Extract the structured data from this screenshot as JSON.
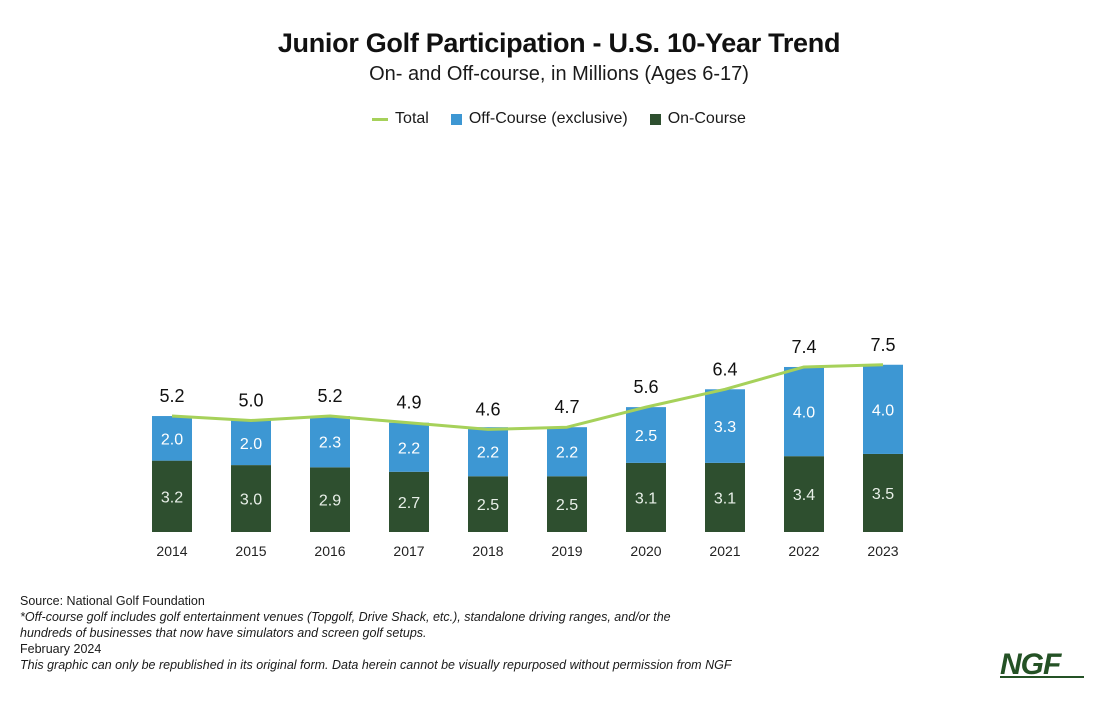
{
  "chart_data": {
    "type": "bar",
    "stacked": true,
    "title": "Junior Golf Participation - U.S. 10-Year Trend",
    "subtitle": "On- and Off-course, in Millions (Ages 6-17)",
    "xlabel": "",
    "ylabel": "",
    "ylim": [
      0,
      8
    ],
    "grid": false,
    "legend_position": "top-center",
    "categories": [
      "2014",
      "2015",
      "2016",
      "2017",
      "2018",
      "2019",
      "2020",
      "2021",
      "2022",
      "2023"
    ],
    "series": [
      {
        "name": "On-Course",
        "type": "bar",
        "color": "#2e4f2f",
        "values": [
          3.2,
          3.0,
          2.9,
          2.7,
          2.5,
          2.5,
          3.1,
          3.1,
          3.4,
          3.5
        ]
      },
      {
        "name": "Off-Course (exclusive)",
        "type": "bar",
        "color": "#3d97d3",
        "values": [
          2.0,
          2.0,
          2.3,
          2.2,
          2.2,
          2.2,
          2.5,
          3.3,
          4.0,
          4.0
        ]
      },
      {
        "name": "Total",
        "type": "line",
        "color": "#a6d15a",
        "values": [
          5.2,
          5.0,
          5.2,
          4.9,
          4.6,
          4.7,
          5.6,
          6.4,
          7.4,
          7.5
        ]
      }
    ],
    "legend": [
      {
        "label": "Total",
        "kind": "line",
        "color": "#a6d15a"
      },
      {
        "label": "Off-Course (exclusive)",
        "kind": "box",
        "color": "#3d97d3"
      },
      {
        "label": "On-Course",
        "kind": "box",
        "color": "#2e4f2f"
      }
    ]
  },
  "footer": {
    "source": "Source: National Golf Foundation",
    "note_line1": "*Off-course golf includes golf entertainment venues (Topgolf, Drive Shack, etc.), standalone driving ranges, and/or the",
    "note_line2": "hundreds of businesses that now have simulators and screen golf setups.",
    "date": "February 2024",
    "disclaimer": "This graphic can only be republished in its original form. Data herein cannot be visually repurposed without permission from NGF"
  },
  "logo": {
    "text": "NGF",
    "color": "#245225"
  }
}
